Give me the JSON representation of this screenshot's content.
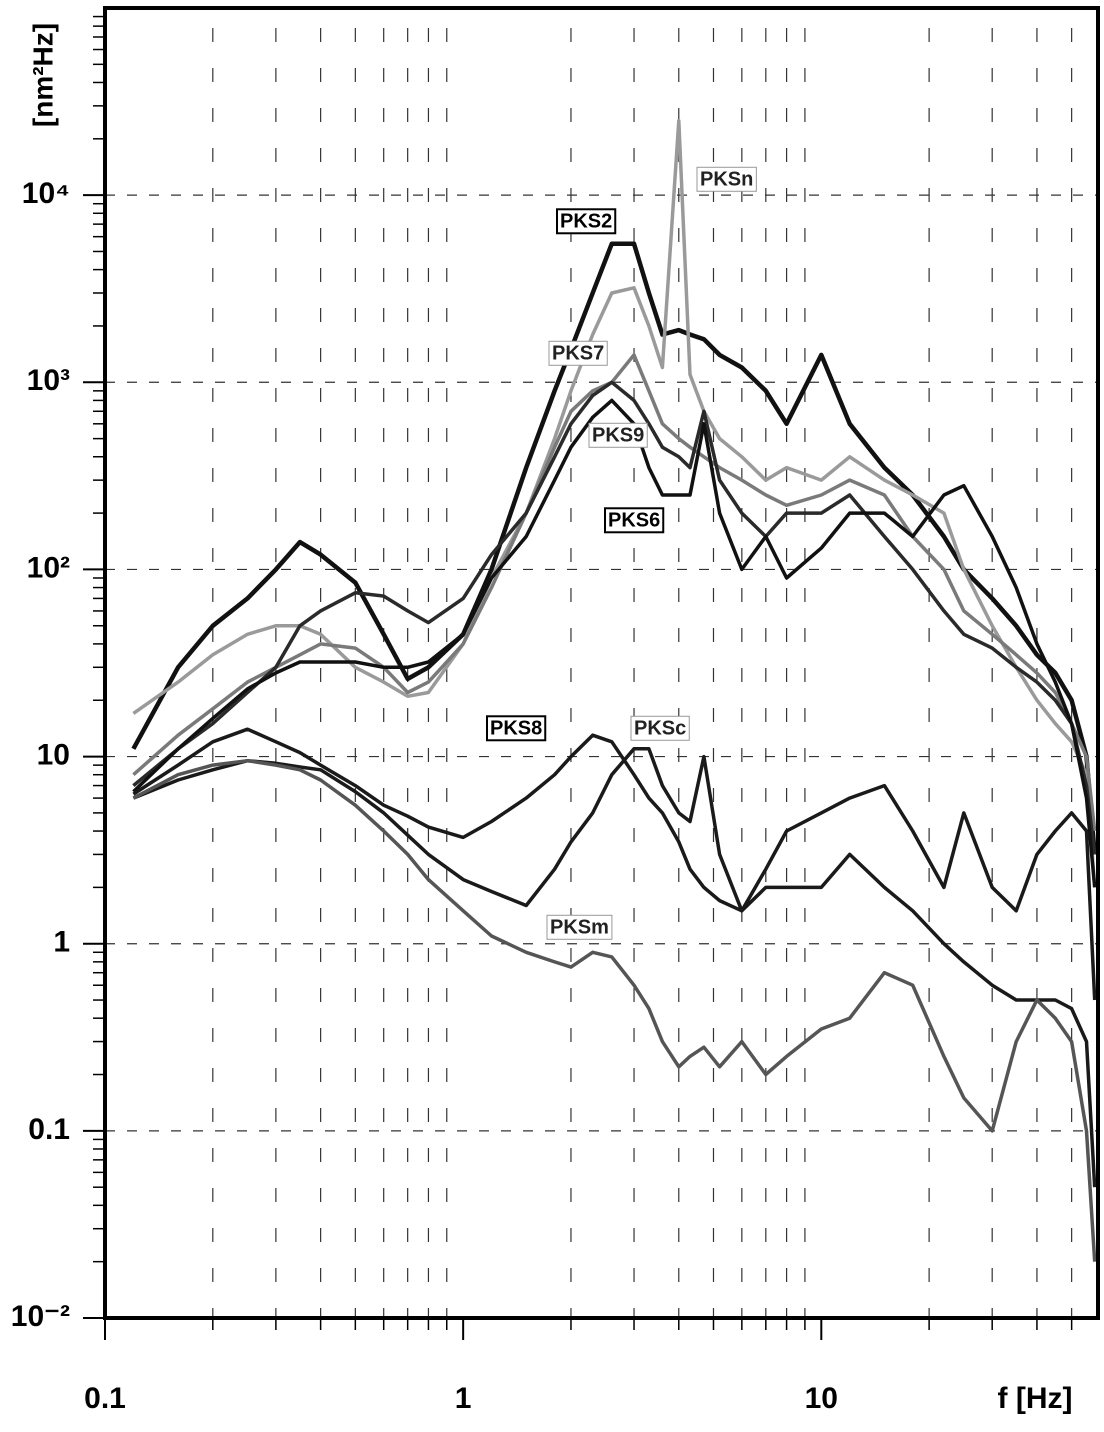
{
  "chart_data": {
    "type": "line",
    "y_label": "[nm²Hz]",
    "x_label": "f [Hz]",
    "xlog": true,
    "ylog": true,
    "grid": true,
    "xlim": [
      0.1,
      60
    ],
    "ylim": [
      0.01,
      100000
    ],
    "xticks": [
      0.1,
      1,
      10
    ],
    "xminorticks": [
      0.2,
      0.3,
      0.4,
      0.5,
      0.6,
      0.7,
      0.8,
      0.9,
      2,
      3,
      4,
      5,
      6,
      7,
      8,
      9,
      20,
      30,
      40,
      50
    ],
    "yticks": [
      {
        "value": 0.01,
        "label": "10⁻²"
      },
      0.1,
      1,
      10,
      {
        "value": 100,
        "label": "10²"
      },
      {
        "value": 1000,
        "label": "10³"
      },
      {
        "value": 10000,
        "label": "10⁴"
      }
    ],
    "yminorticks": [
      0.02,
      0.03,
      0.04,
      0.05,
      0.06,
      0.07,
      0.08,
      0.09,
      0.2,
      0.3,
      0.4,
      0.5,
      0.6,
      0.7,
      0.8,
      0.9,
      2,
      3,
      4,
      5,
      6,
      7,
      8,
      9,
      20,
      30,
      40,
      50,
      60,
      70,
      80,
      90,
      200,
      300,
      400,
      500,
      600,
      700,
      800,
      900,
      2000,
      3000,
      4000,
      5000,
      6000,
      7000,
      8000,
      9000,
      20000,
      30000,
      40000,
      50000,
      60000,
      70000,
      80000,
      90000
    ],
    "x": [
      0.12,
      0.16,
      0.2,
      0.25,
      0.3,
      0.35,
      0.4,
      0.5,
      0.6,
      0.7,
      0.8,
      1,
      1.2,
      1.5,
      1.8,
      2,
      2.3,
      2.6,
      3,
      3.3,
      3.6,
      4,
      4.3,
      4.7,
      5.2,
      6,
      7,
      8,
      10,
      12,
      15,
      18,
      22,
      25,
      30,
      35,
      40,
      45,
      50,
      55,
      58
    ],
    "series": [
      {
        "name": "PKS2",
        "color": "#111111",
        "values": [
          11,
          30,
          50,
          70,
          100,
          140,
          120,
          85,
          45,
          26,
          30,
          45,
          100,
          350,
          900,
          1500,
          3000,
          5500,
          5500,
          3000,
          1800,
          1900,
          1800,
          1700,
          1400,
          1200,
          900,
          600,
          1400,
          600,
          350,
          250,
          150,
          100,
          70,
          50,
          35,
          28,
          20,
          10,
          3
        ]
      },
      {
        "name": "PKSn",
        "color": "#9a9a9a",
        "values": [
          17,
          25,
          35,
          45,
          50,
          50,
          45,
          30,
          25,
          21,
          22,
          40,
          90,
          200,
          500,
          900,
          1800,
          3000,
          3200,
          2000,
          1200,
          25000,
          1100,
          700,
          500,
          400,
          300,
          350,
          300,
          400,
          300,
          250,
          200,
          100,
          50,
          30,
          20,
          15,
          12,
          8,
          2
        ]
      },
      {
        "name": "PKS7",
        "color": "#7a7a7a",
        "values": [
          8,
          13,
          18,
          25,
          30,
          35,
          40,
          38,
          30,
          22,
          25,
          40,
          80,
          200,
          450,
          700,
          900,
          1000,
          1400,
          900,
          600,
          500,
          450,
          400,
          350,
          300,
          250,
          220,
          250,
          300,
          250,
          150,
          100,
          60,
          45,
          35,
          28,
          22,
          15,
          10,
          4
        ]
      },
      {
        "name": "PKS9",
        "color": "#2a2a2a",
        "values": [
          7,
          11,
          15,
          22,
          30,
          50,
          60,
          75,
          72,
          60,
          52,
          70,
          120,
          200,
          400,
          600,
          850,
          1000,
          800,
          600,
          450,
          400,
          350,
          700,
          300,
          200,
          150,
          200,
          200,
          250,
          150,
          100,
          60,
          45,
          38,
          30,
          25,
          20,
          15,
          7,
          3
        ]
      },
      {
        "name": "PKS6",
        "color": "#111111",
        "values": [
          6.5,
          11,
          16,
          23,
          28,
          32,
          32,
          32,
          30,
          30,
          32,
          45,
          90,
          150,
          300,
          450,
          650,
          800,
          600,
          350,
          250,
          250,
          250,
          600,
          200,
          100,
          150,
          90,
          130,
          200,
          200,
          150,
          250,
          280,
          150,
          80,
          40,
          25,
          15,
          6,
          2
        ]
      },
      {
        "name": "PKS8",
        "color": "#1a1a1a",
        "values": [
          6.3,
          9,
          12,
          14,
          12,
          10.5,
          9,
          7,
          5.5,
          4.8,
          4.2,
          3.7,
          4.5,
          6,
          8,
          10,
          13,
          12,
          8,
          6,
          5,
          3.5,
          2.5,
          2,
          1.7,
          1.5,
          2,
          2,
          2,
          3,
          2,
          1.5,
          1,
          0.8,
          0.6,
          0.5,
          0.5,
          0.5,
          0.45,
          0.3,
          0.05
        ]
      },
      {
        "name": "PKSc",
        "color": "#1a1a1a",
        "values": [
          6,
          7.5,
          8.5,
          9.5,
          9.2,
          8.8,
          8.5,
          6.5,
          5,
          3.8,
          3,
          2.2,
          1.9,
          1.6,
          2.5,
          3.5,
          5,
          8,
          11,
          11,
          7,
          5,
          4.5,
          10,
          3,
          1.5,
          2.5,
          4,
          5,
          6,
          7,
          4,
          2,
          5,
          2,
          1.5,
          3,
          4,
          5,
          4,
          0.5
        ]
      },
      {
        "name": "PKSm",
        "color": "#555555",
        "values": [
          6,
          8,
          9,
          9.5,
          9,
          8.5,
          7.5,
          5.5,
          4,
          3,
          2.2,
          1.5,
          1.1,
          0.9,
          0.8,
          0.75,
          0.9,
          0.85,
          0.6,
          0.45,
          0.3,
          0.22,
          0.25,
          0.28,
          0.22,
          0.3,
          0.2,
          0.25,
          0.35,
          0.4,
          0.7,
          0.6,
          0.25,
          0.15,
          0.1,
          0.3,
          0.5,
          0.4,
          0.3,
          0.1,
          0.02
        ]
      }
    ]
  }
}
